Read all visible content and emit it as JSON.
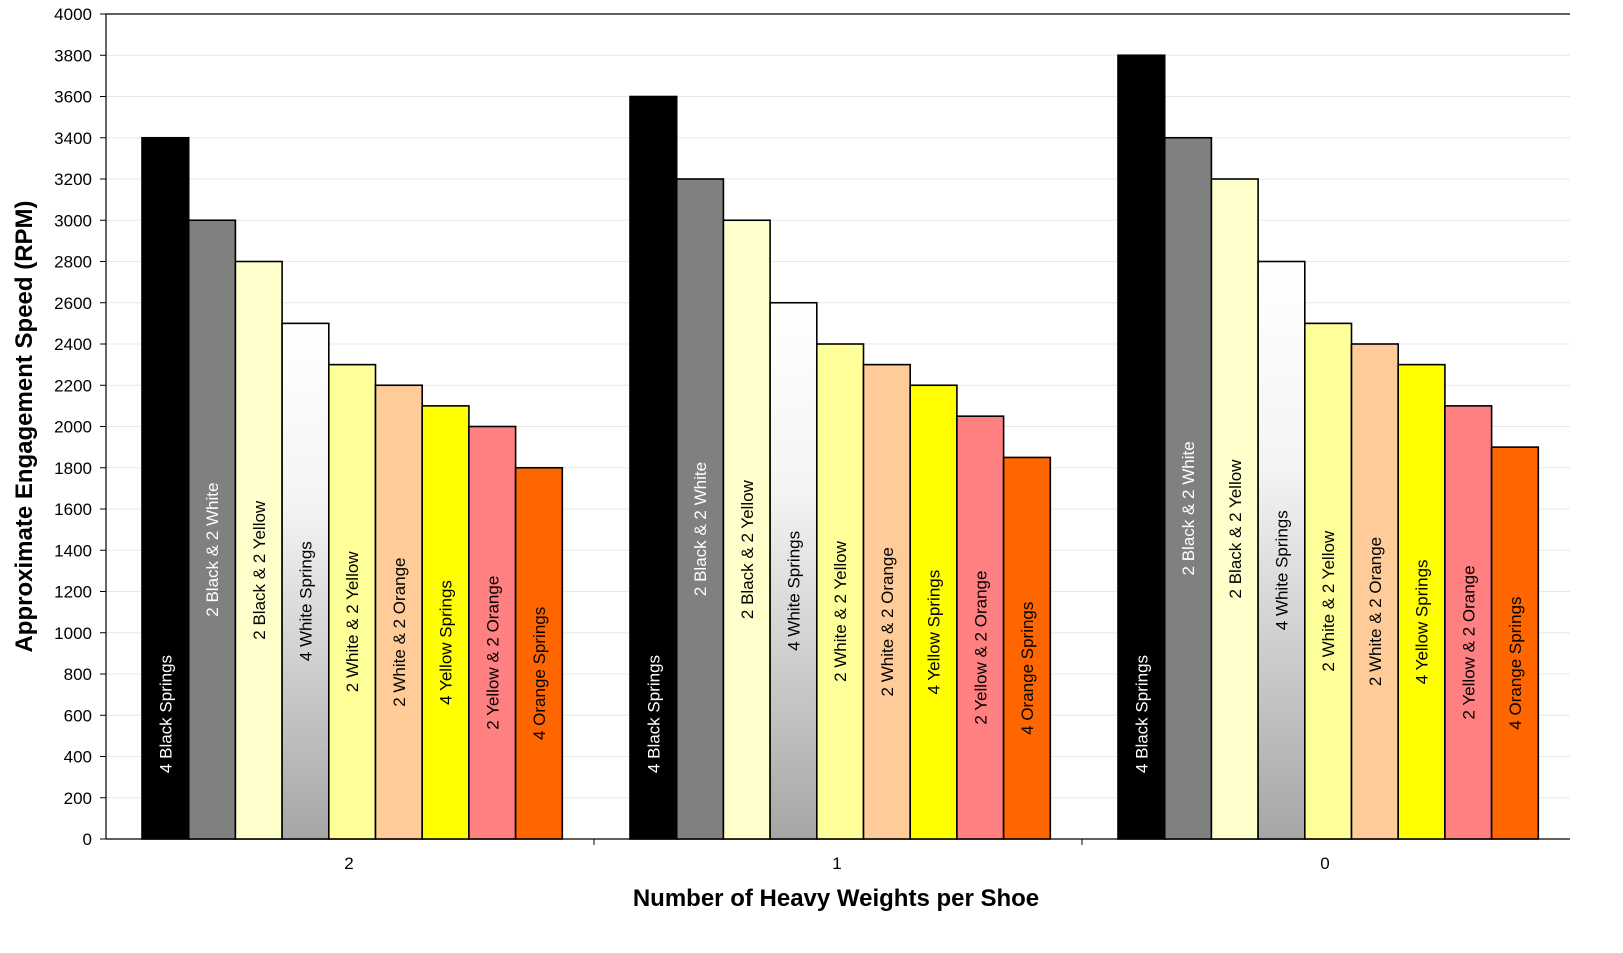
{
  "chart_data": {
    "type": "bar",
    "xlabel": "Number of Heavy Weights per Shoe",
    "ylabel": "Approximate Engagement Speed  (RPM)",
    "ylim": [
      0,
      4000
    ],
    "yticks": [
      "0",
      "200",
      "400",
      "600",
      "800",
      "1000",
      "1200",
      "1400",
      "1600",
      "1800",
      "2000",
      "2200",
      "2400",
      "2600",
      "2800",
      "3000",
      "3200",
      "3400",
      "3600",
      "3800",
      "4000"
    ],
    "categories": [
      "2",
      "1",
      "0"
    ],
    "grid": true,
    "series": [
      {
        "name": "4 Black Springs",
        "values": [
          3400,
          3600,
          3800
        ],
        "color": "#000000",
        "label_color": "#ffffff"
      },
      {
        "name": "2 Black & 2 White",
        "values": [
          3000,
          3200,
          3400
        ],
        "color": "#808080",
        "label_color": "#ffffff"
      },
      {
        "name": "2 Black & 2 Yellow",
        "values": [
          2800,
          3000,
          3200
        ],
        "color": "#ffffcc",
        "label_color": "#000000"
      },
      {
        "name": "4 White Springs",
        "values": [
          2500,
          2600,
          2800
        ],
        "color": "gradient-white-gray",
        "label_color": "#000000"
      },
      {
        "name": "2 White & 2 Yellow",
        "values": [
          2300,
          2400,
          2500
        ],
        "color": "#ffff99",
        "label_color": "#000000"
      },
      {
        "name": "2 White & 2 Orange",
        "values": [
          2200,
          2300,
          2400
        ],
        "color": "#ffcc99",
        "label_color": "#000000"
      },
      {
        "name": "4 Yellow Springs",
        "values": [
          2100,
          2200,
          2300
        ],
        "color": "#ffff00",
        "label_color": "#000000"
      },
      {
        "name": "2 Yellow & 2 Orange",
        "values": [
          2000,
          2050,
          2100
        ],
        "color": "#ff8080",
        "label_color": "#000000"
      },
      {
        "name": "4 Orange Springs",
        "values": [
          1800,
          1850,
          1900
        ],
        "color": "#ff6600",
        "label_color": "#000000"
      }
    ]
  }
}
